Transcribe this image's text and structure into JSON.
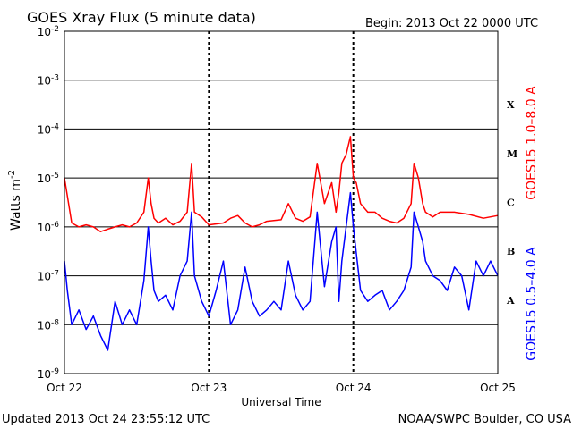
{
  "chart_data": {
    "type": "line",
    "title": "GOES Xray Flux (5 minute data)",
    "begin_label": "Begin:  2013 Oct 22 0000 UTC",
    "xlabel": "Universal Time",
    "ylabel": "Watts m",
    "ylabel_sup": "-2",
    "y_scale": "log",
    "ylim": [
      1e-09,
      0.01
    ],
    "y_ticks": [
      {
        "base": "10",
        "exp": "-9",
        "value": 1e-09
      },
      {
        "base": "10",
        "exp": "-8",
        "value": 1e-08
      },
      {
        "base": "10",
        "exp": "-7",
        "value": 1e-07
      },
      {
        "base": "10",
        "exp": "-6",
        "value": 1e-06
      },
      {
        "base": "10",
        "exp": "-5",
        "value": 1e-05
      },
      {
        "base": "10",
        "exp": "-4",
        "value": 0.0001
      },
      {
        "base": "10",
        "exp": "-3",
        "value": 0.001
      },
      {
        "base": "10",
        "exp": "-2",
        "value": 0.01
      }
    ],
    "x_ticks": [
      "Oct 22",
      "Oct 23",
      "Oct 24",
      "Oct 25"
    ],
    "xlim_days": [
      0,
      3
    ],
    "flare_classes": [
      {
        "label": "X",
        "level": 0.0001
      },
      {
        "label": "M",
        "level": 1e-05
      },
      {
        "label": "C",
        "level": 1e-06
      },
      {
        "label": "B",
        "level": 1e-07
      },
      {
        "label": "A",
        "level": 1e-08
      }
    ],
    "grid": "horizontal lines at each decade",
    "series": [
      {
        "name": "GOES15 1.0–8.0 A",
        "color": "#ff0000",
        "x": [
          0,
          0.05,
          0.1,
          0.15,
          0.2,
          0.25,
          0.3,
          0.35,
          0.4,
          0.45,
          0.5,
          0.55,
          0.58,
          0.6,
          0.62,
          0.65,
          0.7,
          0.75,
          0.8,
          0.85,
          0.88,
          0.9,
          0.95,
          1.0,
          1.1,
          1.15,
          1.2,
          1.25,
          1.3,
          1.35,
          1.4,
          1.5,
          1.55,
          1.6,
          1.65,
          1.7,
          1.75,
          1.8,
          1.85,
          1.88,
          1.9,
          1.92,
          1.95,
          1.98,
          2.0,
          2.02,
          2.05,
          2.1,
          2.15,
          2.2,
          2.25,
          2.3,
          2.35,
          2.4,
          2.42,
          2.45,
          2.48,
          2.5,
          2.55,
          2.6,
          2.7,
          2.8,
          2.9,
          3.0
        ],
        "y": [
          1e-05,
          1.2e-06,
          1e-06,
          1.1e-06,
          1e-06,
          8e-07,
          9e-07,
          1e-06,
          1.1e-06,
          1e-06,
          1.2e-06,
          2e-06,
          1e-05,
          3e-06,
          1.5e-06,
          1.2e-06,
          1.5e-06,
          1.1e-06,
          1.3e-06,
          2e-06,
          2e-05,
          2e-06,
          1.6e-06,
          1.1e-06,
          1.2e-06,
          1.5e-06,
          1.7e-06,
          1.2e-06,
          1e-06,
          1.1e-06,
          1.3e-06,
          1.4e-06,
          3e-06,
          1.5e-06,
          1.3e-06,
          1.6e-06,
          2e-05,
          3e-06,
          8e-06,
          2e-06,
          5e-06,
          2e-05,
          3e-05,
          7e-05,
          1e-05,
          8e-06,
          3e-06,
          2e-06,
          2e-06,
          1.5e-06,
          1.3e-06,
          1.2e-06,
          1.5e-06,
          3e-06,
          2e-05,
          1e-05,
          3e-06,
          2e-06,
          1.6e-06,
          2e-06,
          2e-06,
          1.8e-06,
          1.5e-06,
          1.7e-06
        ]
      },
      {
        "name": "GOES15 0.5–4.0 A",
        "color": "#0000ff",
        "x": [
          0,
          0.02,
          0.05,
          0.1,
          0.15,
          0.2,
          0.25,
          0.3,
          0.35,
          0.4,
          0.45,
          0.5,
          0.55,
          0.58,
          0.6,
          0.62,
          0.65,
          0.7,
          0.75,
          0.8,
          0.85,
          0.88,
          0.9,
          0.95,
          1.0,
          1.05,
          1.1,
          1.15,
          1.2,
          1.25,
          1.3,
          1.35,
          1.4,
          1.45,
          1.5,
          1.55,
          1.6,
          1.65,
          1.7,
          1.75,
          1.8,
          1.85,
          1.88,
          1.9,
          1.92,
          1.95,
          1.98,
          2.0,
          2.02,
          2.05,
          2.1,
          2.15,
          2.2,
          2.25,
          2.3,
          2.35,
          2.4,
          2.42,
          2.45,
          2.48,
          2.5,
          2.55,
          2.6,
          2.65,
          2.7,
          2.75,
          2.8,
          2.85,
          2.9,
          2.95,
          3.0
        ],
        "y": [
          2e-07,
          5e-08,
          1e-08,
          2e-08,
          8e-09,
          1.5e-08,
          6e-09,
          3e-09,
          3e-08,
          1e-08,
          2e-08,
          1e-08,
          8e-08,
          1e-06,
          2e-07,
          5e-08,
          3e-08,
          4e-08,
          2e-08,
          1e-07,
          2e-07,
          2e-06,
          1e-07,
          3e-08,
          1.5e-08,
          5e-08,
          2e-07,
          1e-08,
          2e-08,
          1.5e-07,
          3e-08,
          1.5e-08,
          2e-08,
          3e-08,
          2e-08,
          2e-07,
          4e-08,
          2e-08,
          3e-08,
          2e-06,
          6e-08,
          5e-07,
          1e-06,
          3e-08,
          2e-07,
          1e-06,
          5e-06,
          1e-06,
          3e-07,
          5e-08,
          3e-08,
          4e-08,
          5e-08,
          2e-08,
          3e-08,
          5e-08,
          1.5e-07,
          2e-06,
          1e-06,
          5e-07,
          2e-07,
          1e-07,
          8e-08,
          5e-08,
          1.5e-07,
          1e-07,
          2e-08,
          2e-07,
          1e-07,
          2e-07,
          1e-07
        ]
      }
    ]
  },
  "footer": {
    "updated": "Updated 2013 Oct 24 23:55:12 UTC",
    "credit": "NOAA/SWPC Boulder, CO USA"
  }
}
